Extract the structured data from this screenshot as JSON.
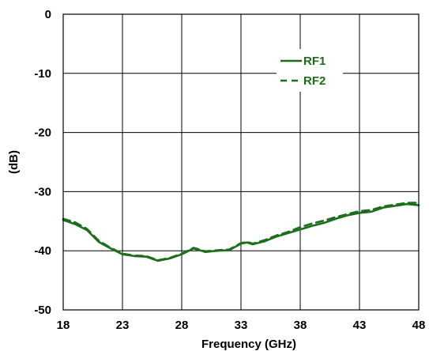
{
  "chart_data": {
    "type": "line",
    "title": "",
    "xlabel": "Frequency (GHz)",
    "ylabel": "(dB)",
    "xlim": [
      18,
      48
    ],
    "ylim": [
      -50,
      0
    ],
    "xticks": [
      18,
      23,
      28,
      33,
      38,
      43,
      48
    ],
    "yticks": [
      0,
      -10,
      -20,
      -30,
      -40,
      -50
    ],
    "xtick_labels": [
      "18",
      "23",
      "28",
      "33",
      "38",
      "43",
      "48"
    ],
    "ytick_labels": [
      "0",
      "-10",
      "-20",
      "-30",
      "-40",
      "-50"
    ],
    "grid": true,
    "legend_position": "top-right",
    "series": [
      {
        "name": "RF1",
        "color": "#1b6e1b",
        "style": "solid",
        "x": [
          18,
          19,
          20,
          21,
          22,
          23,
          24,
          25,
          26,
          27,
          28,
          29,
          30,
          31,
          32,
          33,
          33.5,
          34,
          35,
          36,
          37,
          38,
          39,
          40,
          41,
          42,
          43,
          44,
          45,
          46,
          47,
          48
        ],
        "y": [
          -34.8,
          -35.5,
          -36.5,
          -38.5,
          -39.6,
          -40.6,
          -40.9,
          -41.0,
          -41.7,
          -41.3,
          -40.6,
          -39.6,
          -40.2,
          -40.0,
          -39.9,
          -38.8,
          -38.6,
          -38.9,
          -38.4,
          -37.6,
          -37.0,
          -36.4,
          -35.8,
          -35.3,
          -34.6,
          -34.0,
          -33.6,
          -33.4,
          -32.7,
          -32.4,
          -32.1,
          -32.3
        ]
      },
      {
        "name": "RF2",
        "color": "#1b6e1b",
        "style": "dashed",
        "x": [
          18,
          19,
          20,
          21,
          22,
          23,
          24,
          25,
          26,
          27,
          28,
          29,
          30,
          31,
          32,
          33,
          33.5,
          34,
          35,
          36,
          37,
          38,
          39,
          40,
          41,
          42,
          43,
          44,
          45,
          46,
          47,
          48
        ],
        "y": [
          -34.6,
          -35.2,
          -36.3,
          -38.3,
          -39.5,
          -40.5,
          -40.8,
          -40.9,
          -41.6,
          -41.2,
          -40.5,
          -39.5,
          -40.1,
          -39.9,
          -39.8,
          -38.7,
          -38.5,
          -38.8,
          -38.2,
          -37.4,
          -36.8,
          -36.0,
          -35.4,
          -34.9,
          -34.3,
          -33.8,
          -33.3,
          -33.1,
          -32.5,
          -32.2,
          -31.9,
          -31.9
        ]
      }
    ]
  }
}
